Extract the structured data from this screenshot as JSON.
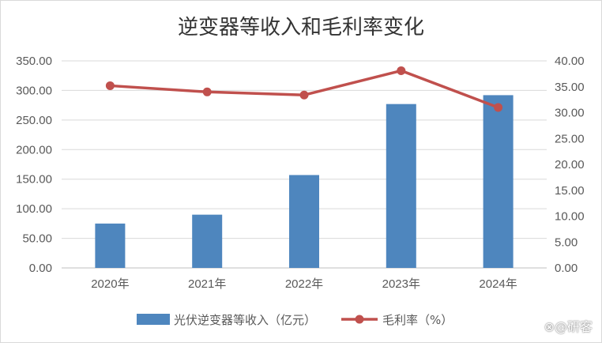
{
  "chart_data": {
    "type": "bar",
    "title": "逆变器等收入和毛利率变化",
    "categories": [
      "2020年",
      "2021年",
      "2022年",
      "2023年",
      "2024年"
    ],
    "series": [
      {
        "name": "光伏逆变器等收入（亿元）",
        "type": "bar",
        "axis": "left",
        "color": "#4e86be",
        "values": [
          75,
          90,
          157,
          277,
          292
        ]
      },
      {
        "name": "毛利率（%）",
        "type": "line",
        "axis": "right",
        "color": "#c0504d",
        "values": [
          35.2,
          34.0,
          33.4,
          38.1,
          31.0
        ]
      }
    ],
    "ylim": [
      0,
      350
    ],
    "y2lim": [
      0,
      40
    ],
    "yticks": [
      "0.00",
      "50.00",
      "100.00",
      "150.00",
      "200.00",
      "250.00",
      "300.00",
      "350.00"
    ],
    "y2ticks": [
      "0.00",
      "5.00",
      "10.00",
      "15.00",
      "20.00",
      "25.00",
      "30.00",
      "35.00",
      "40.00"
    ],
    "grid": true,
    "legend": "bottom"
  },
  "watermark": "⊗@研客"
}
